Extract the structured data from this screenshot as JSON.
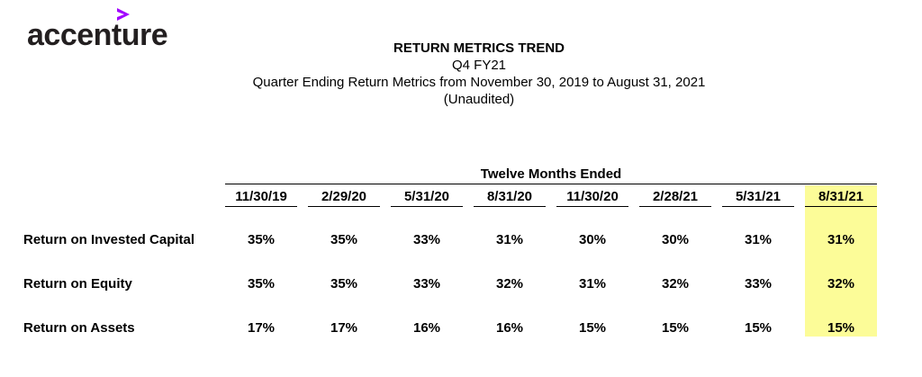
{
  "logo": {
    "text": "accenture"
  },
  "header": {
    "title": "RETURN METRICS TREND",
    "subtitle": "Q4 FY21",
    "description": "Quarter Ending Return Metrics from November 30, 2019 to August 31, 2021",
    "note": "(Unaudited)"
  },
  "table": {
    "group_label": "Twelve Months Ended",
    "highlight_color": "#fcfc98",
    "columns": [
      "11/30/19",
      "2/29/20",
      "5/31/20",
      "8/31/20",
      "11/30/20",
      "2/28/21",
      "5/31/21",
      "8/31/21"
    ],
    "rows": [
      {
        "label": "Return on Invested Capital",
        "values": [
          "35%",
          "35%",
          "33%",
          "31%",
          "30%",
          "30%",
          "31%",
          "31%"
        ]
      },
      {
        "label": "Return on Equity",
        "values": [
          "35%",
          "35%",
          "33%",
          "32%",
          "31%",
          "32%",
          "33%",
          "32%"
        ]
      },
      {
        "label": "Return on Assets",
        "values": [
          "17%",
          "17%",
          "16%",
          "16%",
          "15%",
          "15%",
          "15%",
          "15%"
        ]
      }
    ]
  }
}
